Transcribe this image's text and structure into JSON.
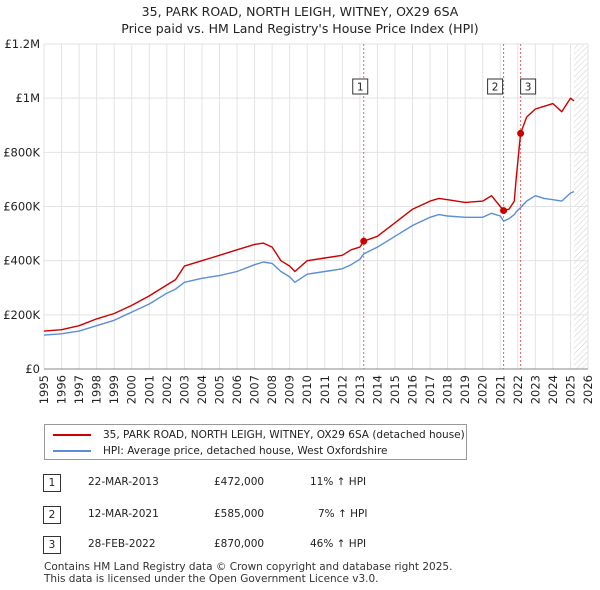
{
  "header": {
    "title": "35, PARK ROAD, NORTH LEIGH, WITNEY, OX29 6SA",
    "subtitle": "Price paid vs. HM Land Registry's House Price Index (HPI)"
  },
  "chart_data": {
    "type": "line",
    "title": "35, PARK ROAD, NORTH LEIGH, WITNEY, OX29 6SA",
    "subtitle": "Price paid vs. HM Land Registry's House Price Index (HPI)",
    "xlim": [
      1995,
      2026
    ],
    "ylim": [
      0,
      1200000
    ],
    "x_ticks": [
      "1995",
      "1996",
      "1997",
      "1998",
      "1999",
      "2000",
      "2001",
      "2002",
      "2003",
      "2004",
      "2005",
      "2006",
      "2007",
      "2008",
      "2009",
      "2010",
      "2011",
      "2012",
      "2013",
      "2014",
      "2015",
      "2016",
      "2017",
      "2018",
      "2019",
      "2020",
      "2021",
      "2022",
      "2023",
      "2024",
      "2025",
      "2026"
    ],
    "y_ticks": [
      {
        "value": 0,
        "label": "£0"
      },
      {
        "value": 200000,
        "label": "£200K"
      },
      {
        "value": 400000,
        "label": "£400K"
      },
      {
        "value": 600000,
        "label": "£600K"
      },
      {
        "value": 800000,
        "label": "£800K"
      },
      {
        "value": 1000000,
        "label": "£1M"
      },
      {
        "value": 1200000,
        "label": "£1.2M"
      }
    ],
    "series": [
      {
        "name": "35, PARK ROAD, NORTH LEIGH, WITNEY, OX29 6SA (detached house)",
        "color": "#cc0000",
        "x": [
          1995.0,
          1996.0,
          1997.0,
          1998.0,
          1999.0,
          2000.0,
          2001.0,
          2002.0,
          2002.5,
          2003.0,
          2004.0,
          2004.5,
          2005.0,
          2006.0,
          2007.0,
          2007.5,
          2008.0,
          2008.5,
          2009.0,
          2009.3,
          2010.0,
          2011.0,
          2012.0,
          2012.5,
          2013.0,
          2013.22,
          2014.0,
          2015.0,
          2016.0,
          2017.0,
          2017.5,
          2018.0,
          2019.0,
          2020.0,
          2020.5,
          2021.0,
          2021.19,
          2021.5,
          2021.8,
          2021.9,
          2022.16,
          2022.5,
          2023.0,
          2023.5,
          2024.0,
          2024.5,
          2025.0,
          2025.2
        ],
        "y": [
          140000,
          145000,
          160000,
          185000,
          205000,
          235000,
          270000,
          310000,
          330000,
          380000,
          400000,
          410000,
          420000,
          440000,
          460000,
          465000,
          450000,
          400000,
          380000,
          360000,
          400000,
          410000,
          420000,
          440000,
          450000,
          472000,
          490000,
          540000,
          590000,
          620000,
          630000,
          625000,
          615000,
          620000,
          640000,
          600000,
          585000,
          590000,
          620000,
          700000,
          870000,
          930000,
          960000,
          970000,
          980000,
          950000,
          1000000,
          990000
        ]
      },
      {
        "name": "HPI: Average price, detached house, West Oxfordshire",
        "color": "#5b8ed6",
        "x": [
          1995.0,
          1996.0,
          1997.0,
          1998.0,
          1999.0,
          2000.0,
          2001.0,
          2002.0,
          2002.5,
          2003.0,
          2004.0,
          2004.5,
          2005.0,
          2006.0,
          2007.0,
          2007.5,
          2008.0,
          2008.5,
          2009.0,
          2009.3,
          2010.0,
          2011.0,
          2012.0,
          2012.5,
          2013.0,
          2013.22,
          2014.0,
          2015.0,
          2016.0,
          2017.0,
          2017.5,
          2018.0,
          2019.0,
          2020.0,
          2020.5,
          2021.0,
          2021.19,
          2021.5,
          2021.8,
          2021.9,
          2022.16,
          2022.5,
          2023.0,
          2023.5,
          2024.0,
          2024.5,
          2025.0,
          2025.2
        ],
        "y": [
          125000,
          130000,
          140000,
          160000,
          180000,
          210000,
          240000,
          280000,
          295000,
          320000,
          335000,
          340000,
          345000,
          360000,
          385000,
          395000,
          390000,
          360000,
          340000,
          320000,
          350000,
          360000,
          370000,
          385000,
          405000,
          425000,
          450000,
          490000,
          530000,
          560000,
          570000,
          565000,
          560000,
          560000,
          575000,
          565000,
          546000,
          555000,
          570000,
          580000,
          596000,
          620000,
          640000,
          630000,
          625000,
          620000,
          650000,
          655000
        ]
      }
    ],
    "annotations": [
      {
        "label": "1",
        "date": "22-MAR-2013",
        "x": 2013.22,
        "price": 472000
      },
      {
        "label": "2",
        "date": "12-MAR-2021",
        "x": 2021.19,
        "price": 585000
      },
      {
        "label": "3",
        "date": "28-FEB-2022",
        "x": 2022.16,
        "price": 870000
      }
    ],
    "grid": true,
    "legend_position": "bottom"
  },
  "legend": {
    "series1_label": "35, PARK ROAD, NORTH LEIGH, WITNEY, OX29 6SA (detached house)",
    "series2_label": "HPI: Average price, detached house, West Oxfordshire"
  },
  "transactions": [
    {
      "num": "1",
      "date": "22-MAR-2013",
      "price": "£472,000",
      "hpi": "11% ↑ HPI"
    },
    {
      "num": "2",
      "date": "12-MAR-2021",
      "price": "£585,000",
      "hpi": "7% ↑ HPI"
    },
    {
      "num": "3",
      "date": "28-FEB-2022",
      "price": "£870,000",
      "hpi": "46% ↑ HPI"
    }
  ],
  "footer": {
    "line1": "Contains HM Land Registry data © Crown copyright and database right 2025.",
    "line2": "This data is licensed under the Open Government Licence v3.0."
  }
}
